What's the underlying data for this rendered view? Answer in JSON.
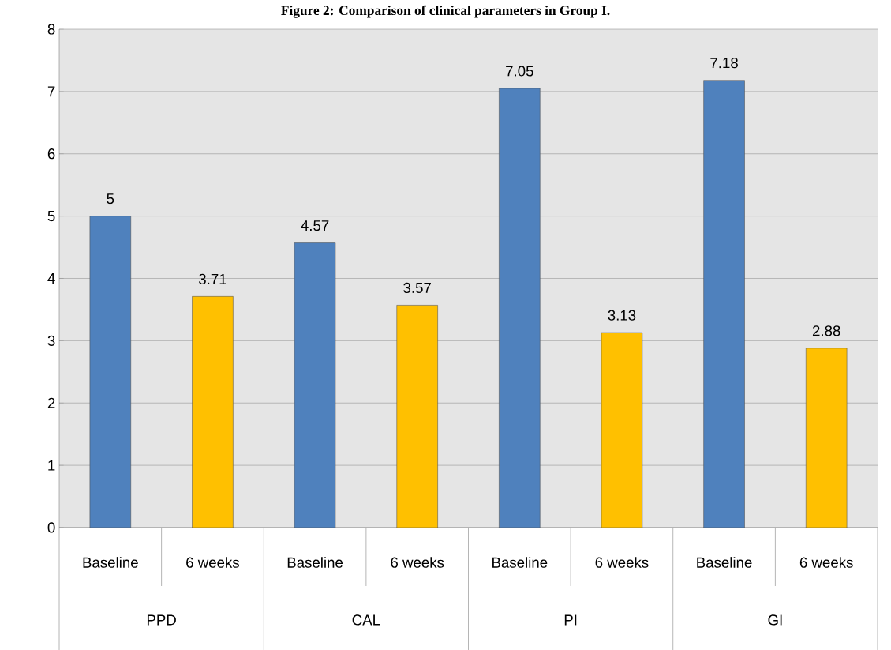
{
  "chart_data": {
    "type": "bar",
    "title": "Figure 2:  Comparison of clinical parameters in Group I.",
    "categories": [
      "Baseline",
      "6 weeks",
      "Baseline",
      "6 weeks",
      "Baseline",
      "6 weeks",
      "Baseline",
      "6 weeks"
    ],
    "values": [
      5,
      3.71,
      4.57,
      3.57,
      7.05,
      3.13,
      7.18,
      2.88
    ],
    "colors": [
      "#4f81bd",
      "#ffc000",
      "#4f81bd",
      "#ffc000",
      "#4f81bd",
      "#ffc000",
      "#4f81bd",
      "#ffc000"
    ],
    "annotations": [
      "PPD",
      "CAL",
      "PI",
      "GI"
    ],
    "ylim": [
      0,
      8
    ],
    "yticks": [
      0,
      1,
      2,
      3,
      4,
      5,
      6,
      7,
      8
    ],
    "grid": "y",
    "data_labels": true
  }
}
